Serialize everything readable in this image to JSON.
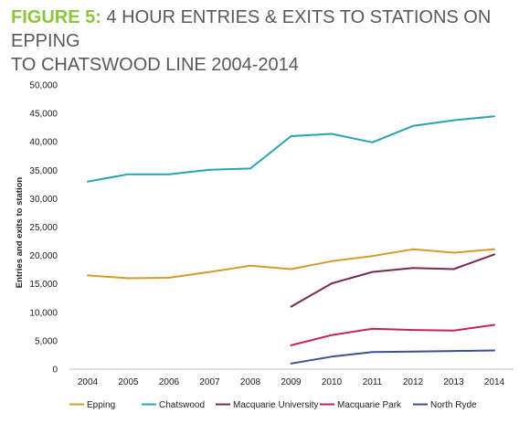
{
  "title": {
    "figure_label": "FIGURE 5:",
    "line1": "4 HOUR ENTRIES & EXITS TO STATIONS ON EPPING",
    "line2": "TO CHATSWOOD LINE 2004-2014"
  },
  "chart_data": {
    "type": "line",
    "ylabel": "Entries and exits to station",
    "xlabel": "",
    "ylim": [
      0,
      50000
    ],
    "yticks": [
      0,
      5000,
      10000,
      15000,
      20000,
      25000,
      30000,
      35000,
      40000,
      45000,
      50000
    ],
    "ytick_labels": [
      "0",
      "5,000",
      "10,000",
      "15,000",
      "20,000",
      "25,000",
      "30,000",
      "35,000",
      "40,000",
      "45,000",
      "50,000"
    ],
    "categories": [
      "2004",
      "2005",
      "2006",
      "2007",
      "2008",
      "2009",
      "2010",
      "2011",
      "2012",
      "2013",
      "2014"
    ],
    "grid": false,
    "legend_position": "bottom",
    "series": [
      {
        "name": "Epping",
        "color": "#d69a2d",
        "values": [
          16500,
          16000,
          16100,
          17100,
          18200,
          17600,
          19000,
          19900,
          21100,
          20500,
          21100
        ]
      },
      {
        "name": "Chatswood",
        "color": "#2aa3b0",
        "values": [
          33000,
          34300,
          34300,
          35100,
          35300,
          41000,
          41400,
          39900,
          42800,
          43800,
          44500
        ]
      },
      {
        "name": "Macquarie University",
        "color": "#7b2a4e",
        "values": [
          null,
          null,
          null,
          null,
          null,
          11000,
          15100,
          17100,
          17800,
          17600,
          20200
        ]
      },
      {
        "name": "Macquarie Park",
        "color": "#c7254e",
        "values": [
          null,
          null,
          null,
          null,
          null,
          4200,
          6000,
          7100,
          6900,
          6800,
          7800
        ]
      },
      {
        "name": "North Ryde",
        "color": "#3a4f9e",
        "values": [
          null,
          null,
          null,
          null,
          null,
          1000,
          2200,
          3000,
          3100,
          3200,
          3300
        ]
      }
    ]
  }
}
